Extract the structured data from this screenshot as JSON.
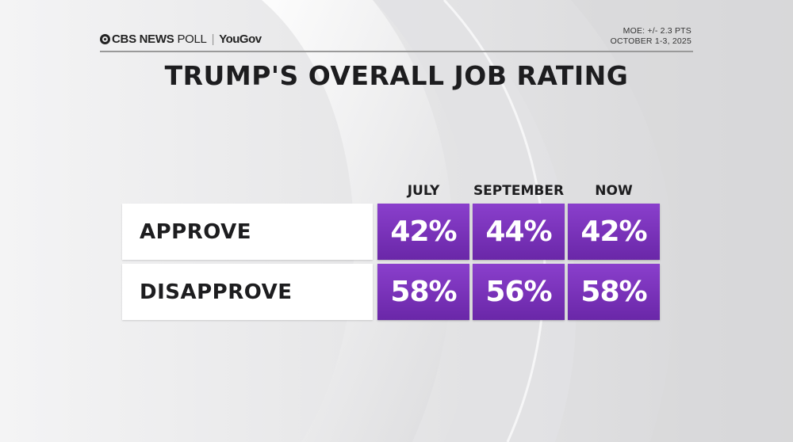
{
  "header": {
    "brand_left": "CBS NEWS",
    "brand_poll": "POLL",
    "brand_separator": "|",
    "brand_partner": "YouGov",
    "moe": "MOE: +/- 2.3 PTS",
    "dates": "OCTOBER 1-3, 2025"
  },
  "title": "TRUMP'S OVERALL JOB RATING",
  "colors": {
    "cell_top": "#8a3fcc",
    "cell_bottom": "#6a27a8",
    "background": "#e9e9ea",
    "label_bg": "#ffffff"
  },
  "chart_data": {
    "type": "table",
    "title": "TRUMP'S OVERALL JOB RATING",
    "columns": [
      "JULY",
      "SEPTEMBER",
      "NOW"
    ],
    "rows": [
      {
        "label": "APPROVE",
        "values": [
          42,
          44,
          42
        ],
        "display": [
          "42%",
          "44%",
          "42%"
        ]
      },
      {
        "label": "DISAPPROVE",
        "values": [
          58,
          56,
          58
        ],
        "display": [
          "58%",
          "56%",
          "58%"
        ]
      }
    ],
    "unit": "%"
  }
}
